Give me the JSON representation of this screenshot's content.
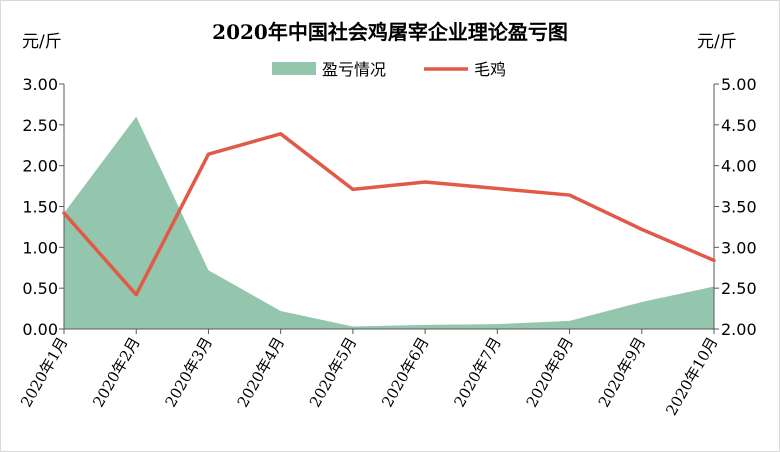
{
  "chart_data": {
    "type": "area",
    "title": "2020年中国社会鸡屠宰企业理论盈亏图",
    "left_unit": "元/斤",
    "right_unit": "元/斤",
    "categories": [
      "2020年1月",
      "2020年2月",
      "2020年3月",
      "2020年4月",
      "2020年5月",
      "2020年6月",
      "2020年7月",
      "2020年8月",
      "2020年9月",
      "2020年10月"
    ],
    "y_left": {
      "lim": [
        0,
        3
      ],
      "ticks": [
        "0.00",
        "0.50",
        "1.00",
        "1.50",
        "2.00",
        "2.50",
        "3.00"
      ]
    },
    "y_right": {
      "lim": [
        2,
        5
      ],
      "ticks": [
        "2.00",
        "2.50",
        "3.00",
        "3.50",
        "4.00",
        "4.50",
        "5.00"
      ]
    },
    "legend_position": "top",
    "series": [
      {
        "name": "盈亏情况",
        "type": "area",
        "axis": "left",
        "color": "#93c6ad",
        "values": [
          1.42,
          2.6,
          0.72,
          0.22,
          0.03,
          0.05,
          0.06,
          0.1,
          0.33,
          0.52
        ]
      },
      {
        "name": "毛鸡",
        "type": "line",
        "axis": "right",
        "color": "#e05a47",
        "values": [
          3.42,
          2.42,
          4.14,
          4.39,
          3.71,
          3.8,
          3.72,
          3.64,
          3.22,
          2.84
        ]
      }
    ],
    "grid": false
  }
}
